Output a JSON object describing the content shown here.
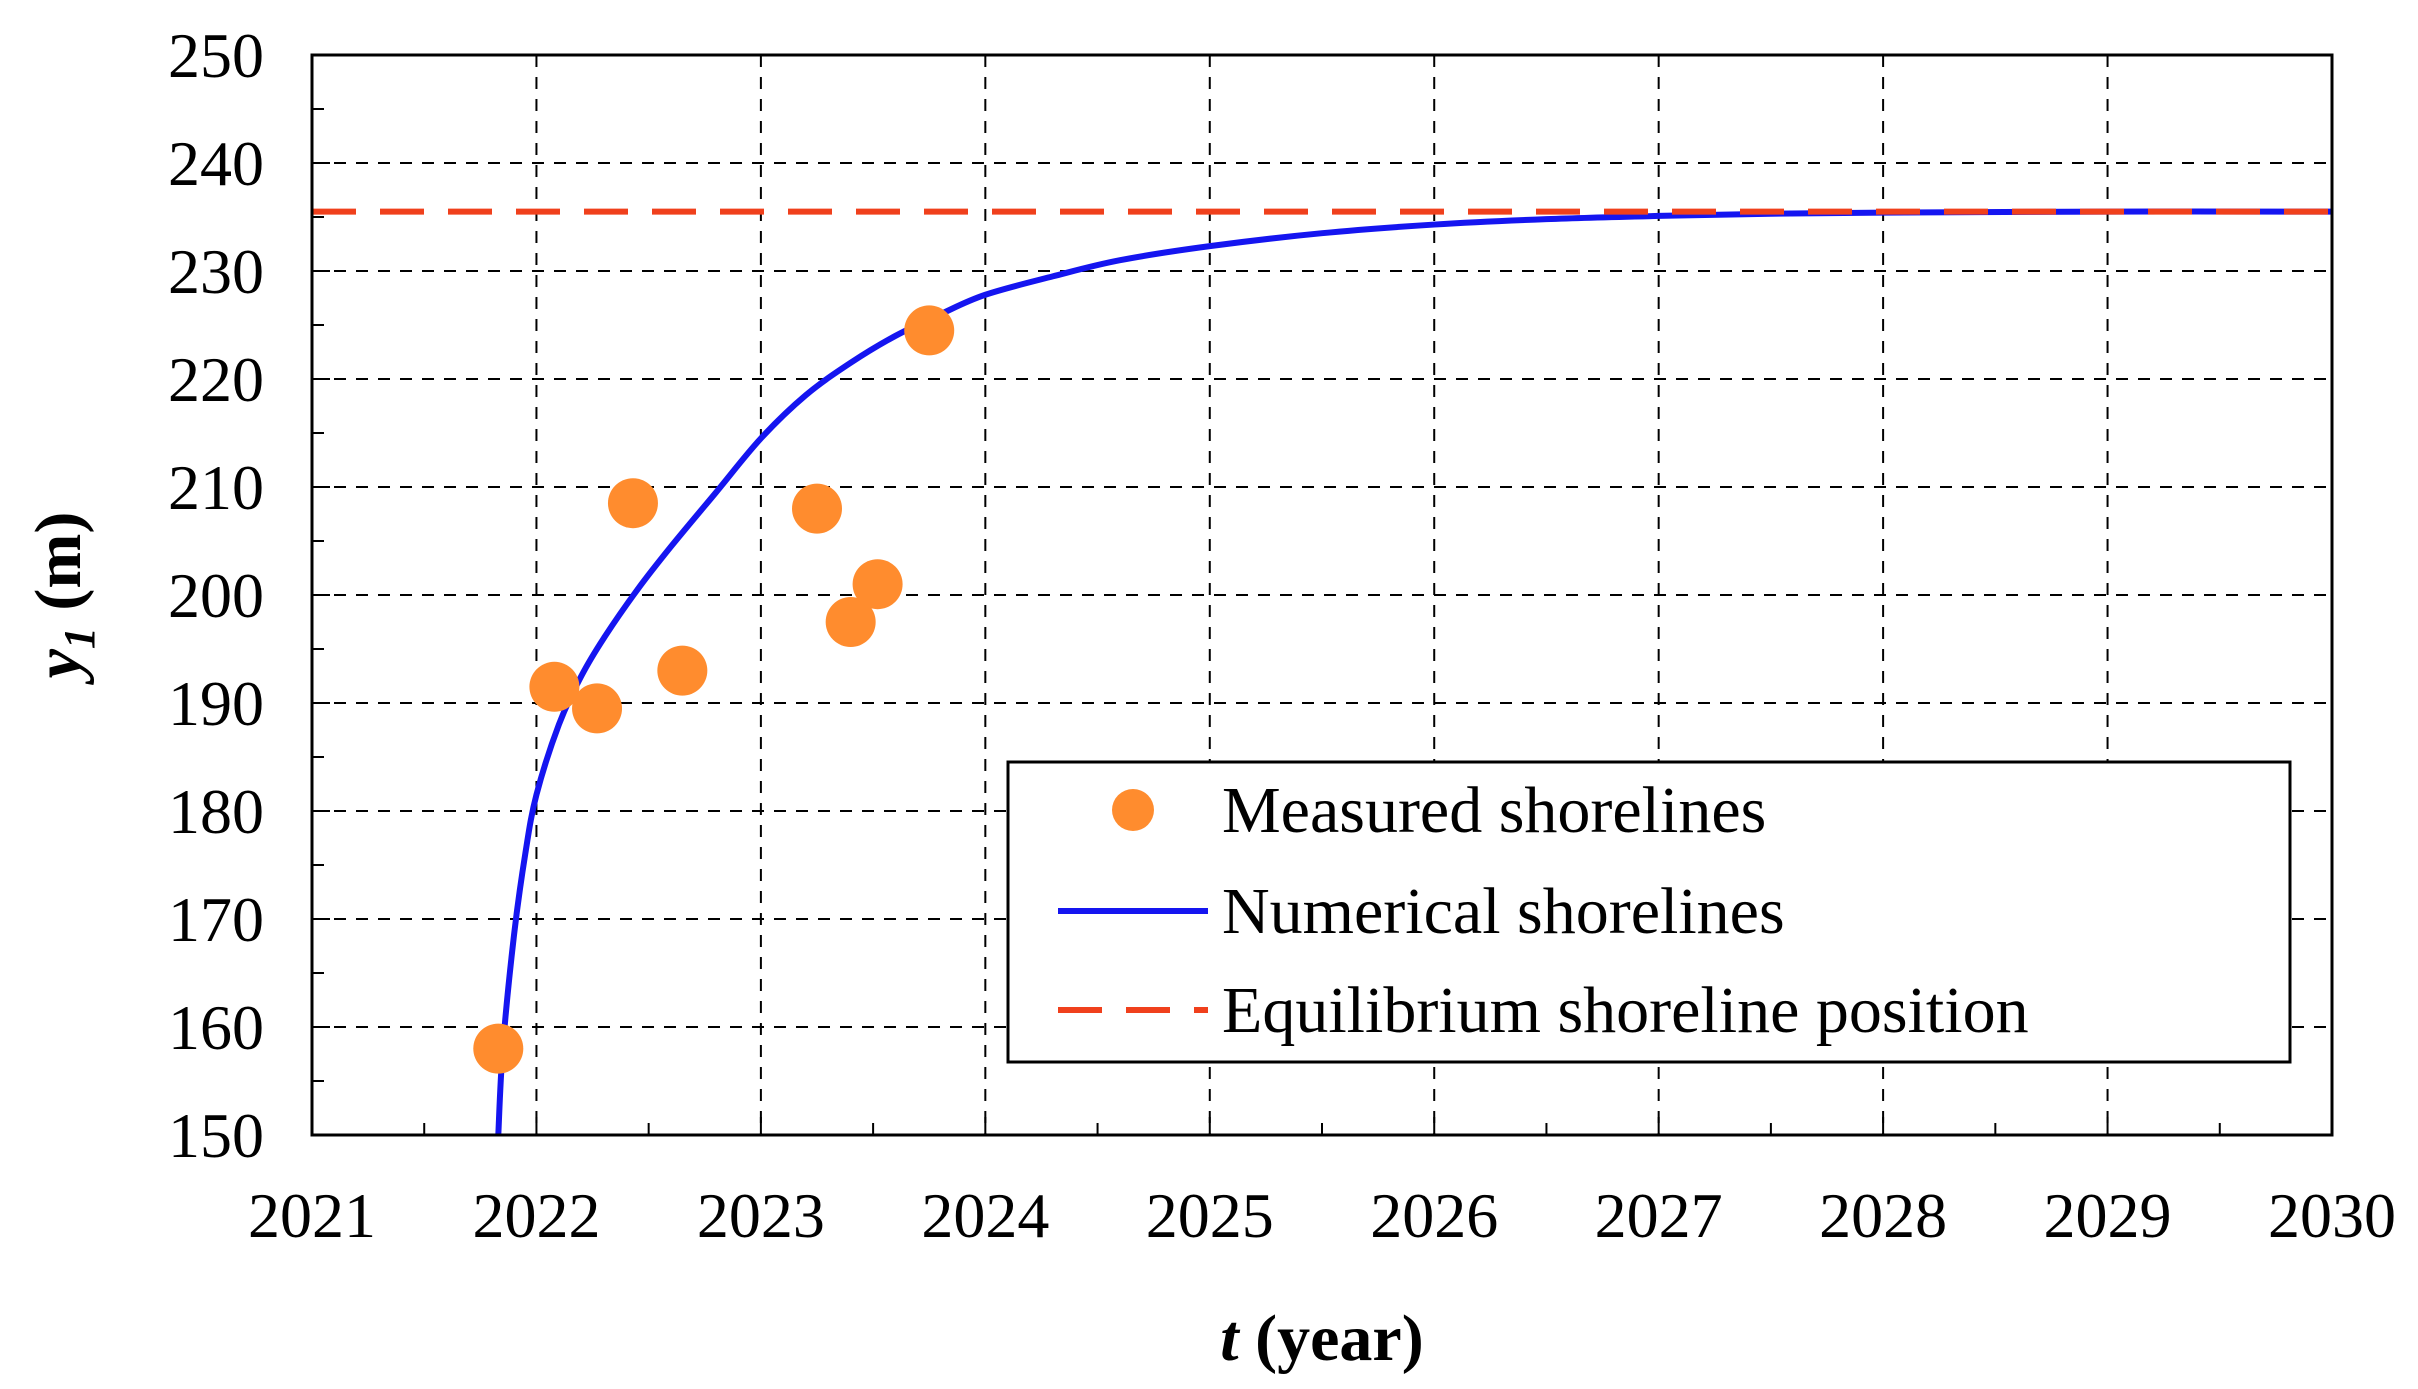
{
  "chart_data": {
    "type": "line",
    "xlabel_var": "t",
    "xlabel_unit": " (year)",
    "ylabel_var": "y",
    "ylabel_sub": "1",
    "ylabel_unit": " (m)",
    "xlim": [
      2021,
      2030
    ],
    "ylim": [
      150,
      250
    ],
    "xticks": [
      2021,
      2022,
      2023,
      2024,
      2025,
      2026,
      2027,
      2028,
      2029,
      2030
    ],
    "yticks": [
      150,
      160,
      170,
      180,
      190,
      200,
      210,
      220,
      230,
      240,
      250
    ],
    "grid": true,
    "legend_position": "lower-right",
    "series": [
      {
        "name": "Measured shorelines",
        "kind": "scatter",
        "color": "#FF8C2E",
        "points": [
          {
            "x": 2021.83,
            "y": 158.0
          },
          {
            "x": 2022.08,
            "y": 191.5
          },
          {
            "x": 2022.27,
            "y": 189.5
          },
          {
            "x": 2022.43,
            "y": 208.5
          },
          {
            "x": 2022.65,
            "y": 193.0
          },
          {
            "x": 2023.25,
            "y": 208.0
          },
          {
            "x": 2023.4,
            "y": 197.5
          },
          {
            "x": 2023.52,
            "y": 201.0
          },
          {
            "x": 2023.75,
            "y": 224.5
          }
        ]
      },
      {
        "name": "Numerical shorelines",
        "kind": "line",
        "color": "#1515F0",
        "points": [
          {
            "x": 2021.83,
            "y": 150.0
          },
          {
            "x": 2021.85,
            "y": 158.0
          },
          {
            "x": 2021.9,
            "y": 168.5
          },
          {
            "x": 2021.95,
            "y": 176.0
          },
          {
            "x": 2022.0,
            "y": 181.5
          },
          {
            "x": 2022.1,
            "y": 188.0
          },
          {
            "x": 2022.2,
            "y": 192.5
          },
          {
            "x": 2022.3,
            "y": 196.0
          },
          {
            "x": 2022.45,
            "y": 200.5
          },
          {
            "x": 2022.6,
            "y": 204.5
          },
          {
            "x": 2022.8,
            "y": 209.5
          },
          {
            "x": 2023.0,
            "y": 214.5
          },
          {
            "x": 2023.2,
            "y": 218.5
          },
          {
            "x": 2023.4,
            "y": 221.5
          },
          {
            "x": 2023.6,
            "y": 224.0
          },
          {
            "x": 2023.8,
            "y": 226.0
          },
          {
            "x": 2024.0,
            "y": 227.8
          },
          {
            "x": 2024.3,
            "y": 229.5
          },
          {
            "x": 2024.6,
            "y": 231.0
          },
          {
            "x": 2025.0,
            "y": 232.3
          },
          {
            "x": 2025.5,
            "y": 233.5
          },
          {
            "x": 2026.0,
            "y": 234.3
          },
          {
            "x": 2026.5,
            "y": 234.8
          },
          {
            "x": 2027.0,
            "y": 235.1
          },
          {
            "x": 2027.5,
            "y": 235.3
          },
          {
            "x": 2028.0,
            "y": 235.4
          },
          {
            "x": 2029.0,
            "y": 235.5
          },
          {
            "x": 2030.0,
            "y": 235.5
          }
        ]
      },
      {
        "name": "Equilibrium shoreline position",
        "kind": "hline",
        "color": "#F0401C",
        "y": 235.5
      }
    ]
  }
}
